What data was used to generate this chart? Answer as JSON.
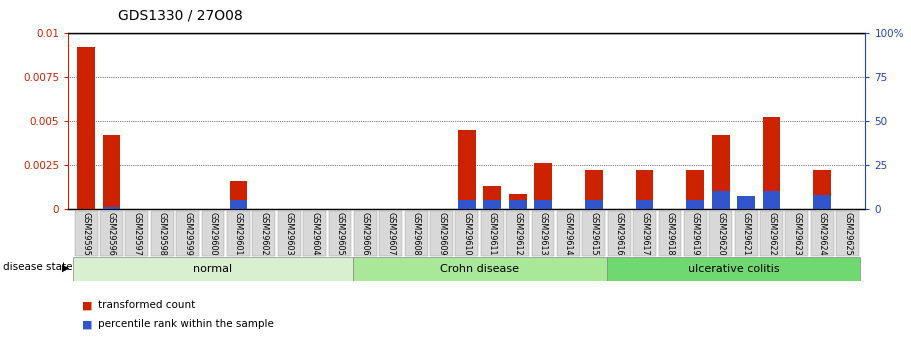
{
  "title": "GDS1330 / 27O08",
  "samples": [
    "GSM29595",
    "GSM29596",
    "GSM29597",
    "GSM29598",
    "GSM29599",
    "GSM29600",
    "GSM29601",
    "GSM29602",
    "GSM29603",
    "GSM29604",
    "GSM29605",
    "GSM29606",
    "GSM29607",
    "GSM29608",
    "GSM29609",
    "GSM29610",
    "GSM29611",
    "GSM29612",
    "GSM29613",
    "GSM29614",
    "GSM29615",
    "GSM29616",
    "GSM29617",
    "GSM29618",
    "GSM29619",
    "GSM29620",
    "GSM29621",
    "GSM29622",
    "GSM29623",
    "GSM29624",
    "GSM29625"
  ],
  "transformed_count": [
    0.0092,
    0.0042,
    0.0,
    0.0,
    0.0,
    0.0,
    0.0016,
    0.0,
    0.0,
    0.0,
    0.0,
    0.0,
    0.0,
    0.0,
    0.0,
    0.0045,
    0.0013,
    0.00085,
    0.0026,
    0.0,
    0.0022,
    0.0,
    0.0022,
    0.0,
    0.0022,
    0.0042,
    0.0,
    0.0052,
    0.0,
    0.0022,
    0.0
  ],
  "percentile_rank": [
    0.0,
    1.0,
    0.0,
    0.0,
    0.0,
    0.0,
    5.0,
    0.0,
    0.0,
    0.0,
    0.0,
    0.0,
    0.0,
    0.0,
    0.0,
    5.0,
    5.0,
    5.0,
    5.0,
    0.0,
    5.0,
    0.0,
    5.0,
    0.0,
    5.0,
    10.0,
    7.0,
    10.0,
    0.0,
    8.0,
    0.0
  ],
  "ylim_left": [
    0,
    0.01
  ],
  "ylim_right": [
    0,
    100
  ],
  "yticks_left": [
    0,
    0.0025,
    0.005,
    0.0075,
    0.01
  ],
  "yticks_right": [
    0,
    25,
    50,
    75,
    100
  ],
  "bar_color_red": "#cc2200",
  "bar_color_blue": "#3355cc",
  "normal_color": "#d8f0d0",
  "crohn_color": "#a8e898",
  "colitis_color": "#70d870",
  "groups": [
    {
      "label": "normal",
      "start": 0,
      "end": 10,
      "color": "#d8f0d0"
    },
    {
      "label": "Crohn disease",
      "start": 11,
      "end": 20,
      "color": "#a8e898"
    },
    {
      "label": "ulcerative colitis",
      "start": 21,
      "end": 30,
      "color": "#70d870"
    }
  ]
}
